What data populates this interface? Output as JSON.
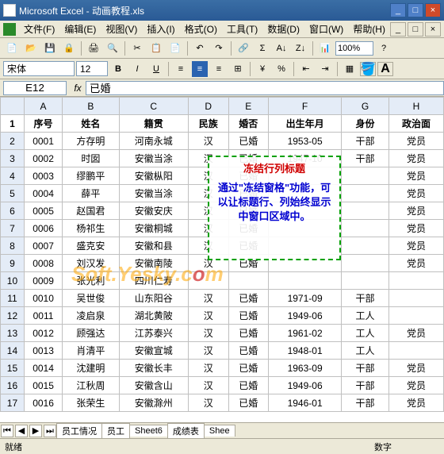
{
  "titlebar": {
    "title": "Microsoft Excel - 动画教程.xls"
  },
  "menu": [
    "文件(F)",
    "编辑(E)",
    "视图(V)",
    "插入(I)",
    "格式(O)",
    "工具(T)",
    "数据(D)",
    "窗口(W)",
    "帮助(H)"
  ],
  "toolbar": {
    "zoom": "100%"
  },
  "fontbar": {
    "fontname": "宋体",
    "fontsize": "12"
  },
  "cellref": {
    "name": "E12",
    "fx": "fx",
    "value": "已婚"
  },
  "colHeaders": [
    "A",
    "B",
    "C",
    "D",
    "E",
    "F",
    "G",
    "H"
  ],
  "headerRow": [
    "序号",
    "姓名",
    "籍贯",
    "民族",
    "婚否",
    "出生年月",
    "身份",
    "政治面"
  ],
  "rows": [
    [
      "2",
      "0001",
      "方存明",
      "河南永城",
      "汉",
      "已婚",
      "1953-05",
      "干部",
      "党员"
    ],
    [
      "3",
      "0002",
      "时囡",
      "安徽当涂",
      "汉",
      "已婚",
      "1947-10",
      "干部",
      "党员"
    ],
    [
      "4",
      "0003",
      "缪鹏平",
      "安徽枞阳",
      "汉",
      "已婚",
      "",
      "",
      "党员"
    ],
    [
      "5",
      "0004",
      "薛平",
      "安徽当涂",
      "汉",
      "已婚",
      "",
      "",
      "党员"
    ],
    [
      "6",
      "0005",
      "赵国君",
      "安徽安庆",
      "汉",
      "已婚",
      "",
      "",
      "党员"
    ],
    [
      "7",
      "0006",
      "杨祁生",
      "安徽桐城",
      "汉",
      "已婚",
      "",
      "",
      "党员"
    ],
    [
      "8",
      "0007",
      "盛克安",
      "安徽和县",
      "汉",
      "已婚",
      "",
      "",
      "党员"
    ],
    [
      "9",
      "0008",
      "刘汉发",
      "安徽南陵",
      "汉",
      "已婚",
      "",
      "",
      "党员"
    ],
    [
      "10",
      "0009",
      "张光利",
      "四川仁寿",
      "",
      "",
      "",
      "",
      ""
    ],
    [
      "11",
      "0010",
      "吴世俊",
      "山东阳谷",
      "汉",
      "已婚",
      "1971-09",
      "干部",
      ""
    ],
    [
      "12",
      "0011",
      "凌启泉",
      "湖北黄陂",
      "汉",
      "已婚",
      "1949-06",
      "工人",
      ""
    ],
    [
      "13",
      "0012",
      "顾强达",
      "江苏泰兴",
      "汉",
      "已婚",
      "1961-02",
      "工人",
      "党员"
    ],
    [
      "14",
      "0013",
      "肖清平",
      "安徽宣城",
      "汉",
      "已婚",
      "1948-01",
      "工人",
      ""
    ],
    [
      "15",
      "0014",
      "沈建明",
      "安徽长丰",
      "汉",
      "已婚",
      "1963-09",
      "干部",
      "党员"
    ],
    [
      "16",
      "0015",
      "江秋周",
      "安徽含山",
      "汉",
      "已婚",
      "1949-06",
      "干部",
      "党员"
    ],
    [
      "17",
      "0016",
      "张荣生",
      "安徽滁州",
      "汉",
      "已婚",
      "1946-01",
      "干部",
      "党员"
    ]
  ],
  "callout": {
    "title": "冻结行列标题",
    "body": "通过\"冻结窗格\"功能，可以让标题行、列始终显示中窗口区域中。"
  },
  "watermark": {
    "a": "Soft.Yesky.c",
    "b": "o",
    "c": "m"
  },
  "sheets": {
    "tabs": [
      "员工情况",
      "员工",
      "Sheet6",
      "成绩表",
      "Shee"
    ]
  },
  "status": {
    "left": "就绪",
    "right": "数字"
  },
  "colors": {
    "highlight": "#ffc000",
    "align_active": "#2a63b0"
  }
}
